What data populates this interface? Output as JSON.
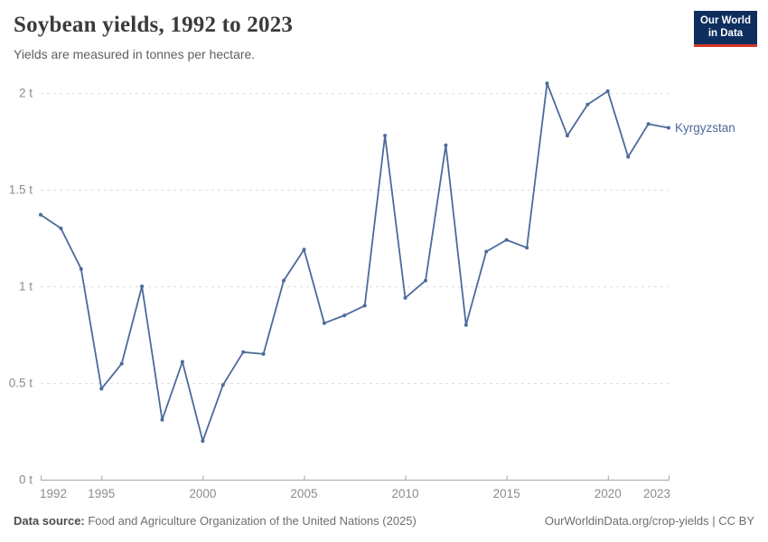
{
  "header": {
    "title": "Soybean yields, 1992 to 2023",
    "subtitle": "Yields are measured in tonnes per hectare."
  },
  "logo": {
    "line1": "Our World",
    "line2": "in Data",
    "bg_color": "#0E2E5E",
    "accent_color": "#D8352A"
  },
  "chart_data": {
    "type": "line",
    "title": "Soybean yields, 1992 to 2023",
    "ylabel": "tonnes per hectare",
    "xlabel": "",
    "xlim": [
      1992,
      2023
    ],
    "ylim": [
      0,
      2.15
    ],
    "grid": "horizontal-dashed",
    "legend_position": "end-of-line-label",
    "x_ticks": [
      1992,
      1995,
      2000,
      2005,
      2010,
      2015,
      2020,
      2023
    ],
    "y_ticks": [
      {
        "value": 0,
        "label": "0 t"
      },
      {
        "value": 0.5,
        "label": "0.5 t"
      },
      {
        "value": 1,
        "label": "1 t"
      },
      {
        "value": 1.5,
        "label": "1.5 t"
      },
      {
        "value": 2,
        "label": "2 t"
      }
    ],
    "series": [
      {
        "name": "Kyrgyzstan",
        "color": "#4C6A9C",
        "x": [
          1992,
          1993,
          1994,
          1995,
          1996,
          1997,
          1998,
          1999,
          2000,
          2001,
          2002,
          2003,
          2004,
          2005,
          2006,
          2007,
          2008,
          2009,
          2010,
          2011,
          2012,
          2013,
          2014,
          2015,
          2016,
          2017,
          2018,
          2019,
          2020,
          2021,
          2022,
          2023
        ],
        "values": [
          1.37,
          1.3,
          1.09,
          0.47,
          0.6,
          1.0,
          0.31,
          0.61,
          0.2,
          0.49,
          0.66,
          0.65,
          1.03,
          1.19,
          0.81,
          0.85,
          0.9,
          1.78,
          0.94,
          1.03,
          1.73,
          0.8,
          1.18,
          1.24,
          1.2,
          2.05,
          1.78,
          1.94,
          2.01,
          1.67,
          1.84,
          1.82
        ]
      }
    ],
    "axis_color": "#a5a5a5",
    "grid_color": "#dedede",
    "tick_label_color": "#8c8c8c"
  },
  "footer": {
    "source_label": "Data source:",
    "source_rest": " Food and Agriculture Organization of the United Nations (2025)",
    "right_text": "OurWorldinData.org/crop-yields | CC BY"
  }
}
